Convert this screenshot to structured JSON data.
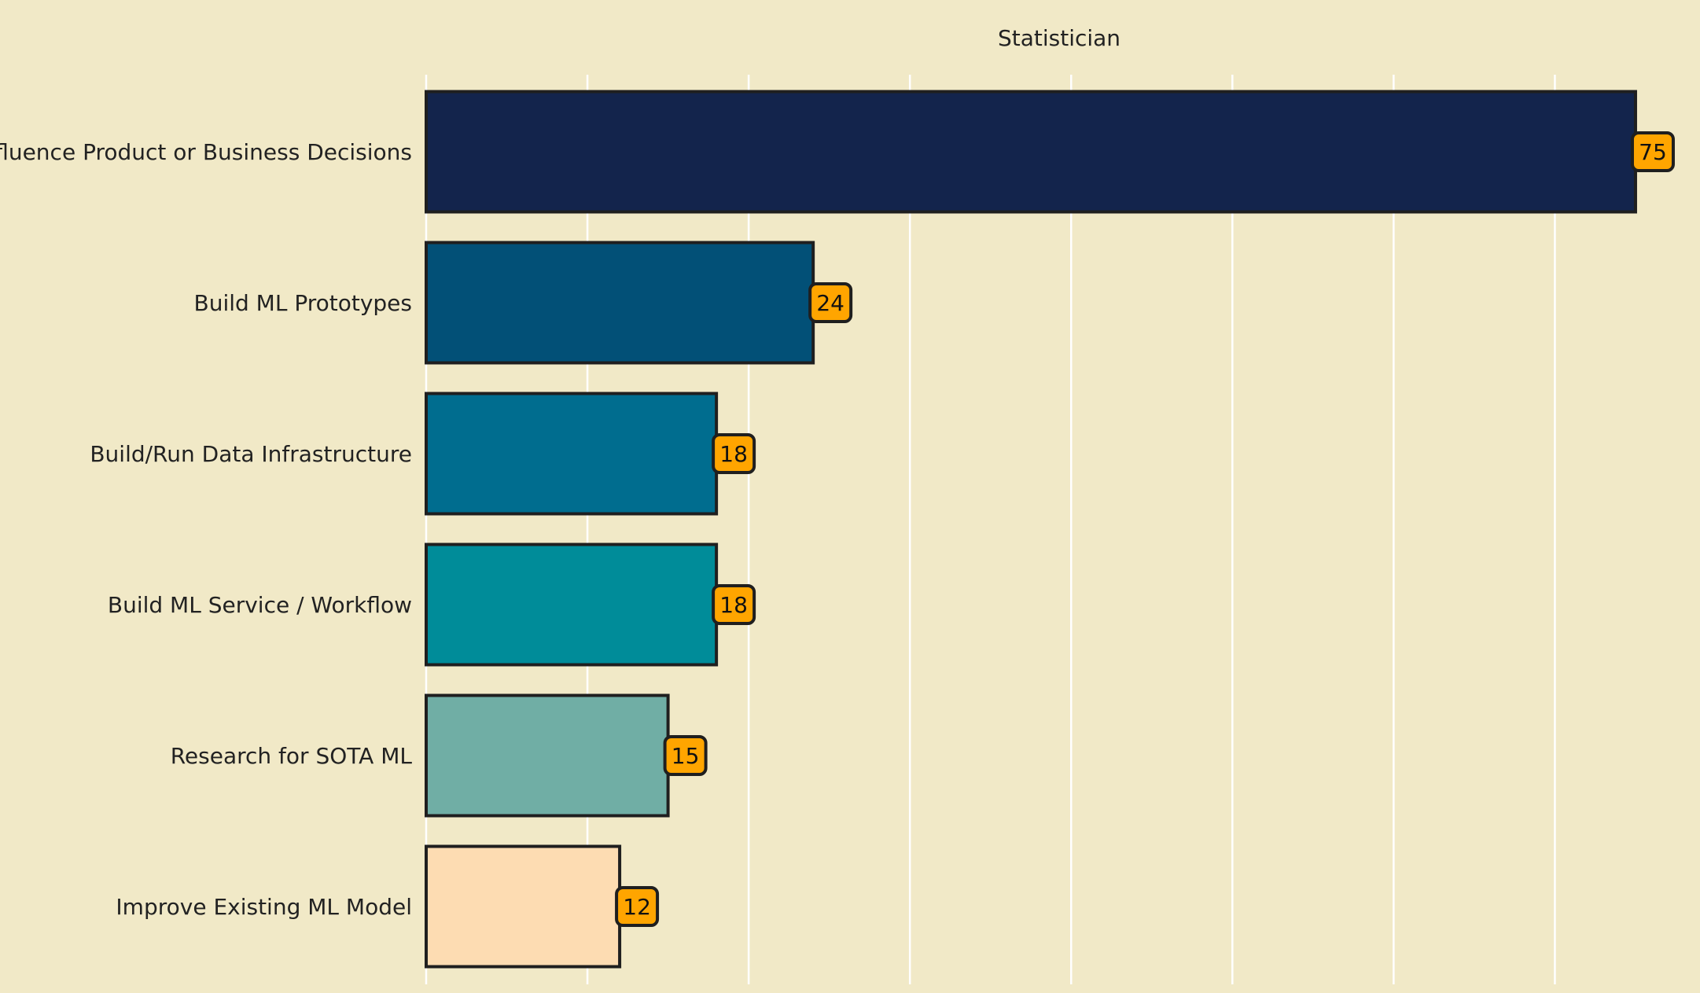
{
  "chart_data": {
    "type": "bar",
    "orientation": "horizontal",
    "title": "Statistician",
    "xlabel": "",
    "ylabel": "",
    "categories": [
      "Influence Product or Business Decisions",
      "Build ML Prototypes",
      "Build/Run Data Infrastructure",
      "Build ML Service / Workflow",
      "Research for SOTA ML",
      "Improve Existing ML Model"
    ],
    "values": [
      75,
      24,
      18,
      18,
      15,
      12
    ],
    "value_labels": [
      "75",
      "24",
      "18",
      "18",
      "15",
      "12"
    ],
    "xlim": [
      0,
      79
    ],
    "x_gridlines": [
      0,
      10,
      20,
      30,
      40,
      50,
      60,
      70
    ],
    "grid": true,
    "tick_labels_x_visible": false,
    "legend": "none",
    "colors": {
      "background": "#f1e9c7",
      "grid": "#ffffff",
      "bar_edge": "#1f1f1f",
      "label_box": "#ffa500",
      "text": "#222222",
      "bars": [
        "#13244c",
        "#025077",
        "#006d8f",
        "#008c99",
        "#70aea5",
        "#fddcb2"
      ]
    }
  }
}
